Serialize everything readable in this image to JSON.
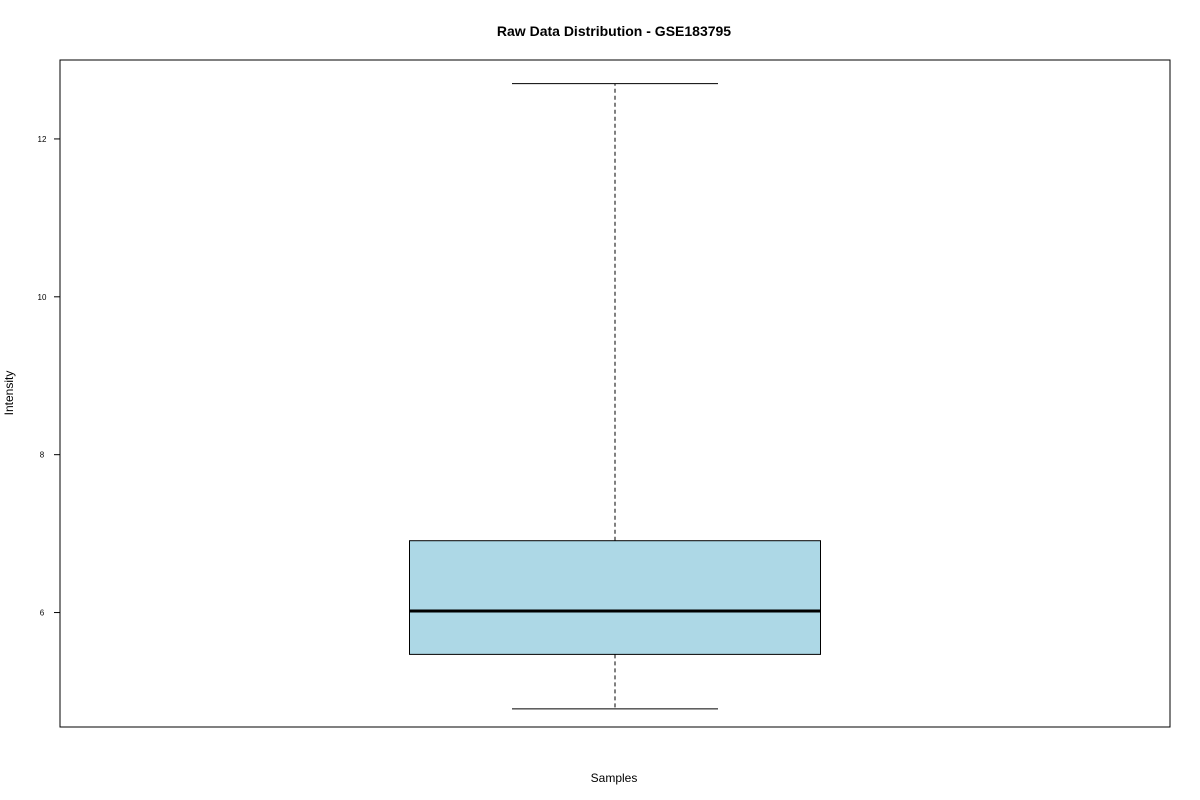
{
  "chart_data": {
    "type": "box",
    "title": "Raw Data Distribution - GSE183795",
    "xlabel": "Samples",
    "ylabel": "Intensity",
    "ylim": [
      4.55,
      13.0
    ],
    "yticks": [
      6,
      8,
      10,
      12
    ],
    "ytick_labels": [
      "6",
      "8",
      "10",
      "12"
    ],
    "box_fill": "#add8e6",
    "stroke_color": "#000000",
    "boxes": [
      {
        "min": 4.78,
        "q1": 5.47,
        "median": 6.02,
        "q3": 6.91,
        "max": 12.7
      }
    ],
    "grid": false,
    "legend": "none"
  }
}
